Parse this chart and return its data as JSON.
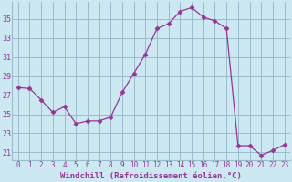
{
  "x": [
    0,
    1,
    2,
    3,
    4,
    5,
    6,
    7,
    8,
    9,
    10,
    11,
    12,
    13,
    14,
    15,
    16,
    17,
    18,
    19,
    20,
    21,
    22,
    23
  ],
  "y": [
    27.8,
    27.7,
    26.5,
    25.2,
    25.8,
    24.0,
    24.3,
    24.3,
    24.7,
    27.3,
    29.3,
    31.3,
    34.0,
    34.5,
    35.8,
    36.2,
    35.2,
    34.8,
    34.0,
    21.7,
    21.7,
    20.7,
    21.2,
    21.8
  ],
  "line_color": "#993399",
  "marker": "D",
  "marker_size": 2.5,
  "bg_color": "#cce8f0",
  "grid_color": "#99bbcc",
  "xlabel": "Windchill (Refroidissement éolien,°C)",
  "ylabel_ticks": [
    21,
    23,
    25,
    27,
    29,
    31,
    33,
    35
  ],
  "ylim": [
    20.2,
    36.8
  ],
  "xlim": [
    -0.5,
    23.5
  ],
  "label_color": "#993399",
  "tick_color": "#993399",
  "font_family": "monospace",
  "xlabel_fontsize": 6.5,
  "ytick_fontsize": 6,
  "xtick_fontsize": 5.5
}
